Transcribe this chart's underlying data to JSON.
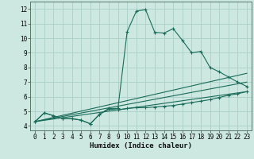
{
  "xlabel": "Humidex (Indice chaleur)",
  "xlim": [
    -0.5,
    23.5
  ],
  "ylim": [
    3.7,
    12.5
  ],
  "yticks": [
    4,
    5,
    6,
    7,
    8,
    9,
    10,
    11,
    12
  ],
  "xticks": [
    0,
    1,
    2,
    3,
    4,
    5,
    6,
    7,
    8,
    9,
    10,
    11,
    12,
    13,
    14,
    15,
    16,
    17,
    18,
    19,
    20,
    21,
    22,
    23
  ],
  "bg_color": "#cce8e0",
  "grid_color": "#aacfc8",
  "line_color": "#1a6b5a",
  "line1_x": [
    0,
    1,
    2,
    3,
    4,
    5,
    6,
    7,
    8,
    9,
    10,
    11,
    12,
    13,
    14,
    15,
    16,
    17,
    18,
    19,
    20,
    21,
    22,
    23
  ],
  "line1_y": [
    4.3,
    4.9,
    4.7,
    4.5,
    4.5,
    4.4,
    4.15,
    4.8,
    5.2,
    5.2,
    10.45,
    11.85,
    11.95,
    10.4,
    10.35,
    10.65,
    9.85,
    9.0,
    9.1,
    8.0,
    7.7,
    7.35,
    7.0,
    6.7
  ],
  "line2_x": [
    0,
    1,
    2,
    3,
    4,
    5,
    6,
    7,
    8,
    9,
    10,
    11,
    12,
    13,
    14,
    15,
    16,
    17,
    18,
    19,
    20,
    21,
    22,
    23
  ],
  "line2_y": [
    4.3,
    4.9,
    4.7,
    4.5,
    4.5,
    4.4,
    4.15,
    4.8,
    5.15,
    5.1,
    5.2,
    5.25,
    5.25,
    5.3,
    5.35,
    5.4,
    5.5,
    5.6,
    5.7,
    5.8,
    5.95,
    6.1,
    6.2,
    6.35
  ],
  "line3_x": [
    0,
    23
  ],
  "line3_y": [
    4.3,
    7.6
  ],
  "line4_x": [
    0,
    23
  ],
  "line4_y": [
    4.3,
    7.0
  ],
  "line5_x": [
    0,
    23
  ],
  "line5_y": [
    4.3,
    6.35
  ]
}
